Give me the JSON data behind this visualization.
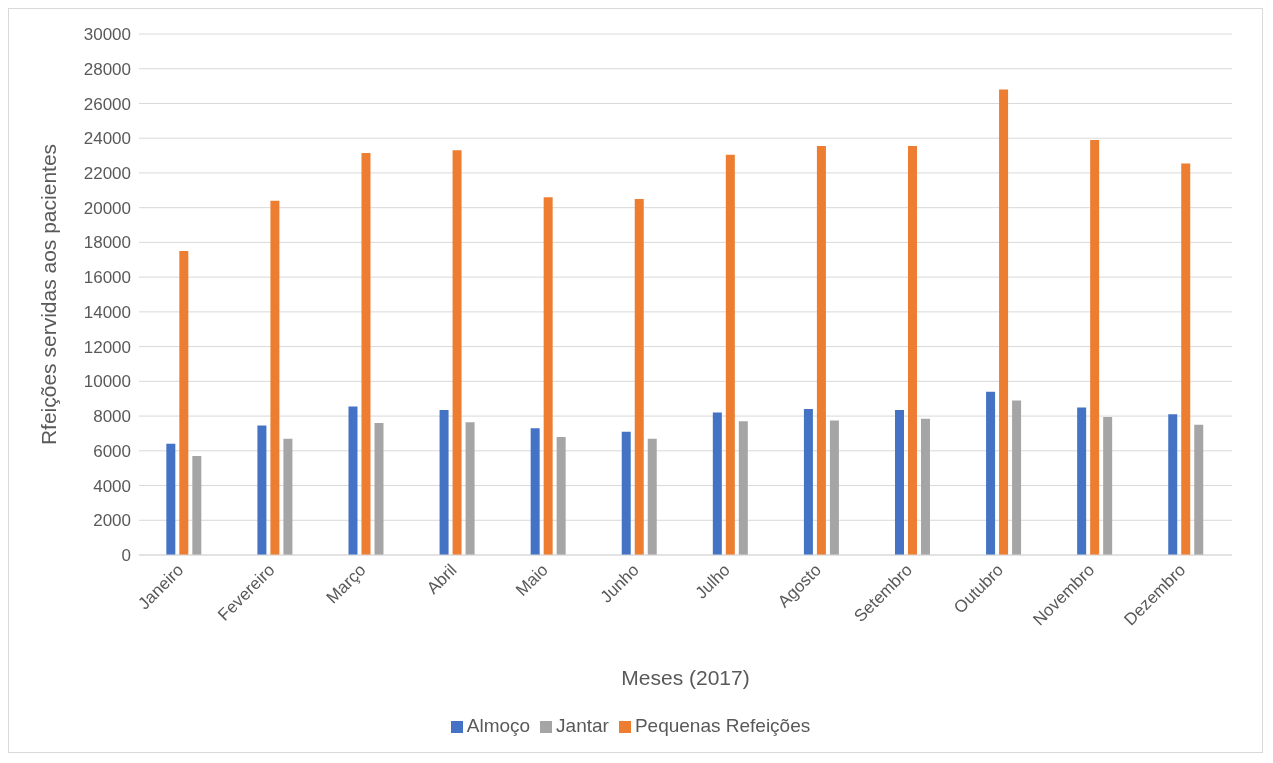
{
  "chart_data": {
    "type": "bar",
    "xlabel": "Meses (2017)",
    "ylabel": "Rfeições servidas aos pacientes",
    "categories": [
      "Janeiro",
      "Fevereiro",
      "Março",
      "Abril",
      "Maio",
      "Junho",
      "Julho",
      "Agosto",
      "Setembro",
      "Outubro",
      "Novembro",
      "Dezembro"
    ],
    "series": [
      {
        "name": "Almoço",
        "color": "#4472c4",
        "values": [
          6400,
          7450,
          8550,
          8350,
          7300,
          7100,
          8200,
          8400,
          8350,
          9400,
          8500,
          8100
        ]
      },
      {
        "name": "Pequenas Refeições",
        "color": "#ed7d31",
        "values": [
          17500,
          20400,
          23150,
          23300,
          20600,
          20500,
          23050,
          23550,
          23550,
          26800,
          23900,
          22550
        ]
      },
      {
        "name": "Jantar",
        "color": "#a5a5a5",
        "values": [
          5700,
          6700,
          7600,
          7650,
          6800,
          6700,
          7700,
          7750,
          7850,
          8900,
          7950,
          7500
        ]
      }
    ],
    "ylim": [
      0,
      30000
    ],
    "yticks": [
      0,
      2000,
      4000,
      6000,
      8000,
      10000,
      12000,
      14000,
      16000,
      18000,
      20000,
      22000,
      24000,
      26000,
      28000,
      30000
    ],
    "grid": "y",
    "legend": "bottom"
  }
}
